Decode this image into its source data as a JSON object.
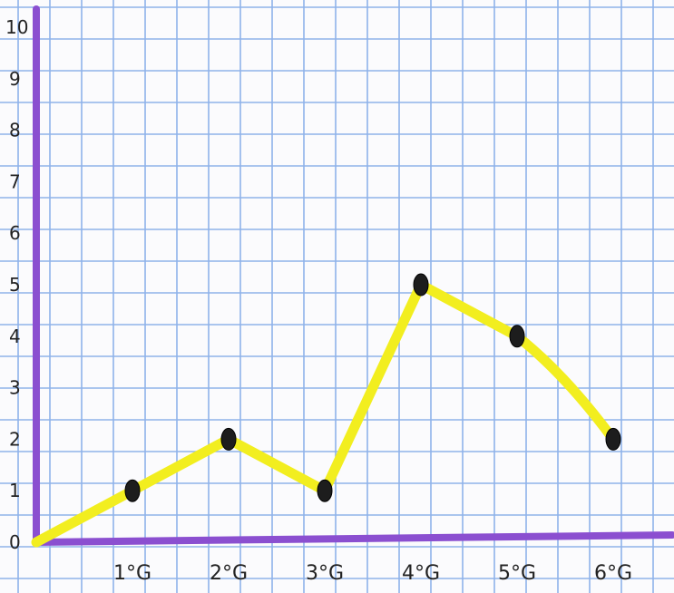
{
  "chart_data": {
    "type": "line",
    "title": "",
    "xlabel": "",
    "ylabel": "",
    "categories": [
      "0",
      "1°G",
      "2°G",
      "3°G",
      "4°G",
      "5°G",
      "6°G"
    ],
    "x_tick_labels": [
      "1°G",
      "2°G",
      "3°G",
      "4°G",
      "5°G",
      "6°G"
    ],
    "y_tick_labels": [
      "0",
      "1",
      "2",
      "3",
      "4",
      "5",
      "6",
      "7",
      "8",
      "9",
      "10"
    ],
    "ylim": [
      0,
      10
    ],
    "grid": true,
    "series": [
      {
        "values": [
          0,
          1,
          2,
          1,
          5,
          4,
          2
        ]
      }
    ],
    "colors": {
      "axis": "#8b4fd0",
      "line": "#f2ee1f",
      "points": "#1d1d1d",
      "grid": "#8fb3ea",
      "paper": "#fbfbfd"
    }
  }
}
